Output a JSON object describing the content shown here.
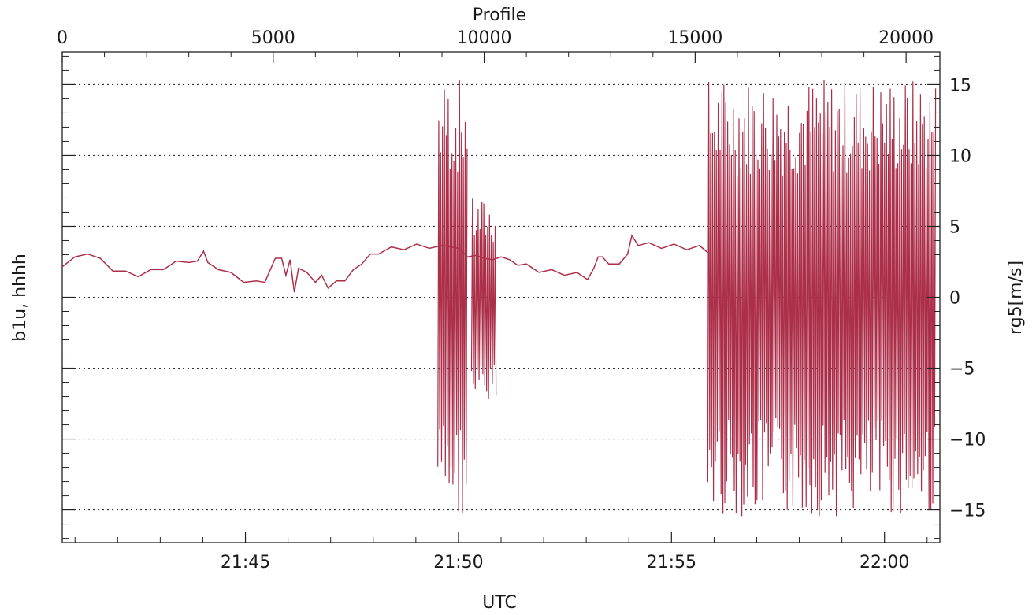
{
  "chart_data": {
    "type": "line",
    "title": "",
    "top_axis": {
      "label": "Profile",
      "range": [
        0,
        20800
      ],
      "ticks": [
        0,
        5000,
        10000,
        15000,
        20000
      ],
      "tick_labels": [
        "0",
        "5000",
        "10000",
        "15000",
        "20000"
      ]
    },
    "x_axis": {
      "label": "UTC",
      "range": [
        "21:40:42",
        "22:01:18"
      ],
      "ticks": [
        "21:45",
        "21:50",
        "21:55",
        "22:00"
      ],
      "tick_labels": [
        "21:45",
        "21:50",
        "21:55",
        "22:00"
      ]
    },
    "left_axis": {
      "label": "b1u, hhhh"
    },
    "right_axis": {
      "label": "rg5[m/s]",
      "range": [
        -17.3,
        17.3
      ],
      "ticks": [
        -15,
        -10,
        -5,
        0,
        5,
        10,
        15
      ],
      "tick_labels": [
        "−15",
        "−10",
        "−5",
        "0",
        "5",
        "10",
        "15"
      ]
    },
    "grid": "dotted horizontal at major y ticks",
    "series": [
      {
        "color": "#ac2f49",
        "quiet_trace": [
          {
            "x": 0,
            "y": 2.3
          },
          {
            "x": 300,
            "y": 2.7
          },
          {
            "x": 600,
            "y": 3.2
          },
          {
            "x": 900,
            "y": 2.6
          },
          {
            "x": 1200,
            "y": 2.0
          },
          {
            "x": 1500,
            "y": 1.7
          },
          {
            "x": 1800,
            "y": 1.6
          },
          {
            "x": 2100,
            "y": 1.8
          },
          {
            "x": 2400,
            "y": 2.1
          },
          {
            "x": 2700,
            "y": 2.4
          },
          {
            "x": 3000,
            "y": 2.6
          },
          {
            "x": 3200,
            "y": 2.4
          },
          {
            "x": 3350,
            "y": 3.4
          },
          {
            "x": 3450,
            "y": 2.3
          },
          {
            "x": 3700,
            "y": 2.1
          },
          {
            "x": 4000,
            "y": 1.6
          },
          {
            "x": 4300,
            "y": 1.2
          },
          {
            "x": 4600,
            "y": 1.0
          },
          {
            "x": 4800,
            "y": 1.2
          },
          {
            "x": 5050,
            "y": 2.6
          },
          {
            "x": 5200,
            "y": 2.9
          },
          {
            "x": 5300,
            "y": 1.4
          },
          {
            "x": 5400,
            "y": 2.8
          },
          {
            "x": 5500,
            "y": 0.2
          },
          {
            "x": 5600,
            "y": 2.2
          },
          {
            "x": 5800,
            "y": 1.6
          },
          {
            "x": 6000,
            "y": 1.2
          },
          {
            "x": 6150,
            "y": 1.4
          },
          {
            "x": 6300,
            "y": 0.8
          },
          {
            "x": 6500,
            "y": 1.0
          },
          {
            "x": 6700,
            "y": 1.3
          },
          {
            "x": 6900,
            "y": 1.8
          },
          {
            "x": 7100,
            "y": 2.5
          },
          {
            "x": 7300,
            "y": 2.9
          },
          {
            "x": 7500,
            "y": 3.2
          },
          {
            "x": 7800,
            "y": 3.4
          },
          {
            "x": 8100,
            "y": 3.5
          },
          {
            "x": 8400,
            "y": 3.6
          },
          {
            "x": 8700,
            "y": 3.6
          },
          {
            "x": 9000,
            "y": 3.5
          },
          {
            "x": 9200,
            "y": 3.7
          },
          {
            "x": 9400,
            "y": 3.3
          },
          {
            "x": 9600,
            "y": 3.0
          },
          {
            "x": 9800,
            "y": 2.8
          },
          {
            "x": 10000,
            "y": 2.9
          },
          {
            "x": 10200,
            "y": 2.5
          },
          {
            "x": 10400,
            "y": 3.0
          },
          {
            "x": 10600,
            "y": 2.5
          },
          {
            "x": 10800,
            "y": 2.4
          },
          {
            "x": 11000,
            "y": 2.2
          },
          {
            "x": 11300,
            "y": 1.9
          },
          {
            "x": 11600,
            "y": 1.8
          },
          {
            "x": 11900,
            "y": 1.7
          },
          {
            "x": 12200,
            "y": 1.6
          },
          {
            "x": 12450,
            "y": 1.4
          },
          {
            "x": 12600,
            "y": 1.9
          },
          {
            "x": 12700,
            "y": 3.0
          },
          {
            "x": 12800,
            "y": 2.7
          },
          {
            "x": 12950,
            "y": 2.5
          },
          {
            "x": 13200,
            "y": 2.2
          },
          {
            "x": 13400,
            "y": 3.2
          },
          {
            "x": 13500,
            "y": 4.2
          },
          {
            "x": 13650,
            "y": 3.8
          },
          {
            "x": 13900,
            "y": 3.7
          },
          {
            "x": 14200,
            "y": 3.6
          },
          {
            "x": 14500,
            "y": 3.6
          },
          {
            "x": 14800,
            "y": 3.5
          },
          {
            "x": 15100,
            "y": 3.5
          },
          {
            "x": 15300,
            "y": 3.3
          }
        ],
        "noisy_segments": [
          {
            "x_start": 8900,
            "x_end": 9600,
            "amplitude": 15.5,
            "center": 0
          },
          {
            "x_start": 9700,
            "x_end": 10300,
            "amplitude": 7.5,
            "center": -0.5
          },
          {
            "x_start": 15300,
            "x_end": 20700,
            "amplitude": 15.5,
            "center": 0
          }
        ]
      }
    ]
  }
}
